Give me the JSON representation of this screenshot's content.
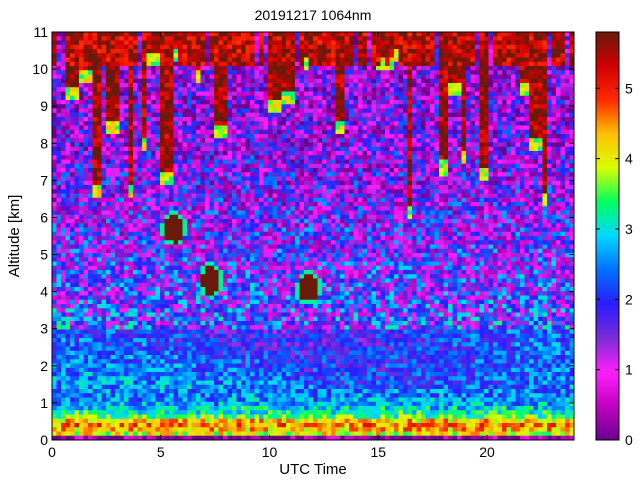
{
  "chart_data": {
    "type": "heatmap",
    "title": "20191217 1064nm",
    "xlabel": "UTC Time",
    "ylabel": "Altitude [km]",
    "xlim": [
      0,
      24
    ],
    "ylim": [
      0,
      11
    ],
    "x_ticks": [
      0,
      5,
      10,
      15,
      20
    ],
    "y_ticks": [
      0,
      1,
      2,
      3,
      4,
      5,
      6,
      7,
      8,
      9,
      10,
      11
    ],
    "colorbar": {
      "range": [
        0,
        5.8
      ],
      "ticks": [
        0,
        1,
        2,
        3,
        4,
        5
      ],
      "colormap": [
        "#6a0090",
        "#c000c0",
        "#ff20ff",
        "#7a2bd6",
        "#2a1cff",
        "#0070ff",
        "#00d8ff",
        "#00ff60",
        "#d8ff00",
        "#ffc000",
        "#ff2a00",
        "#d00000",
        "#6a1a0a"
      ]
    },
    "grid": false,
    "legend": "none",
    "features": [
      {
        "name": "aerosol boundary layer",
        "t_start": 0,
        "t_end": 24,
        "alt_bottom": 0.15,
        "alt_top": 0.95,
        "value": 4.2
      },
      {
        "name": "cirrus cloud",
        "t_start": 0,
        "t_end": 24,
        "alt_bottom": 5.5,
        "alt_top": 11,
        "value": 5.5
      },
      {
        "name": "cloud patch",
        "t_center": 7.3,
        "alt_center": 4.3,
        "value": 5.8
      },
      {
        "name": "cloud patch",
        "t_center": 5.6,
        "alt_center": 5.7,
        "value": 5.8
      },
      {
        "name": "cloud patch",
        "t_center": 11.8,
        "alt_center": 4.1,
        "value": 5.8
      }
    ]
  }
}
